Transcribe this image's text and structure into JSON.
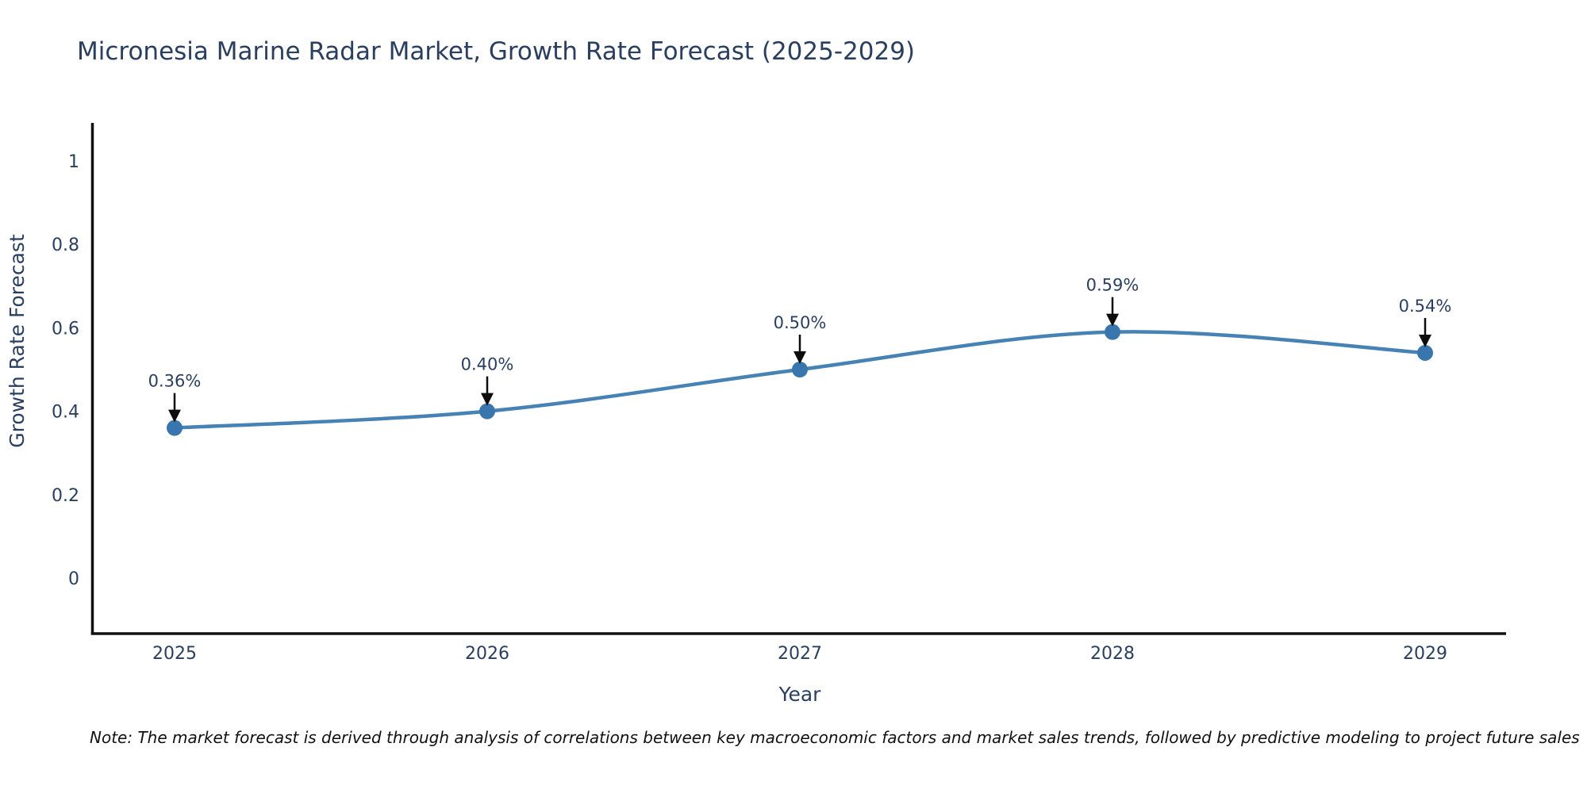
{
  "title": "Micronesia Marine Radar Market, Growth Rate Forecast (2025-2029)",
  "note": "Note: The market forecast is derived through analysis of correlations between key macroeconomic factors and market sales trends, followed by predictive modeling to project future sales",
  "chart_data": {
    "type": "line",
    "title": "Micronesia Marine Radar Market, Growth Rate Forecast (2025-2029)",
    "x": [
      "2025",
      "2026",
      "2027",
      "2028",
      "2029"
    ],
    "values": [
      0.36,
      0.4,
      0.5,
      0.59,
      0.54
    ],
    "point_labels": [
      "0.36%",
      "0.40%",
      "0.50%",
      "0.59%",
      "0.54%"
    ],
    "xlabel": "Year",
    "ylabel": "Growth Rate Forecast",
    "yticks": [
      0,
      0.2,
      0.4,
      0.6,
      0.8,
      1
    ],
    "ytick_labels": [
      "0",
      "0.2",
      "0.4",
      "0.6",
      "0.8",
      "1"
    ],
    "ylim": [
      -0.14,
      1.09
    ],
    "grid": false,
    "legend": null,
    "line_color": "#4682b4",
    "marker_color": "#3a76ae",
    "arrow_color": "#0d0d0d",
    "axis_color": "#111111",
    "tick_color": "#2a3f5f",
    "title_color": "#2a3f5f"
  }
}
